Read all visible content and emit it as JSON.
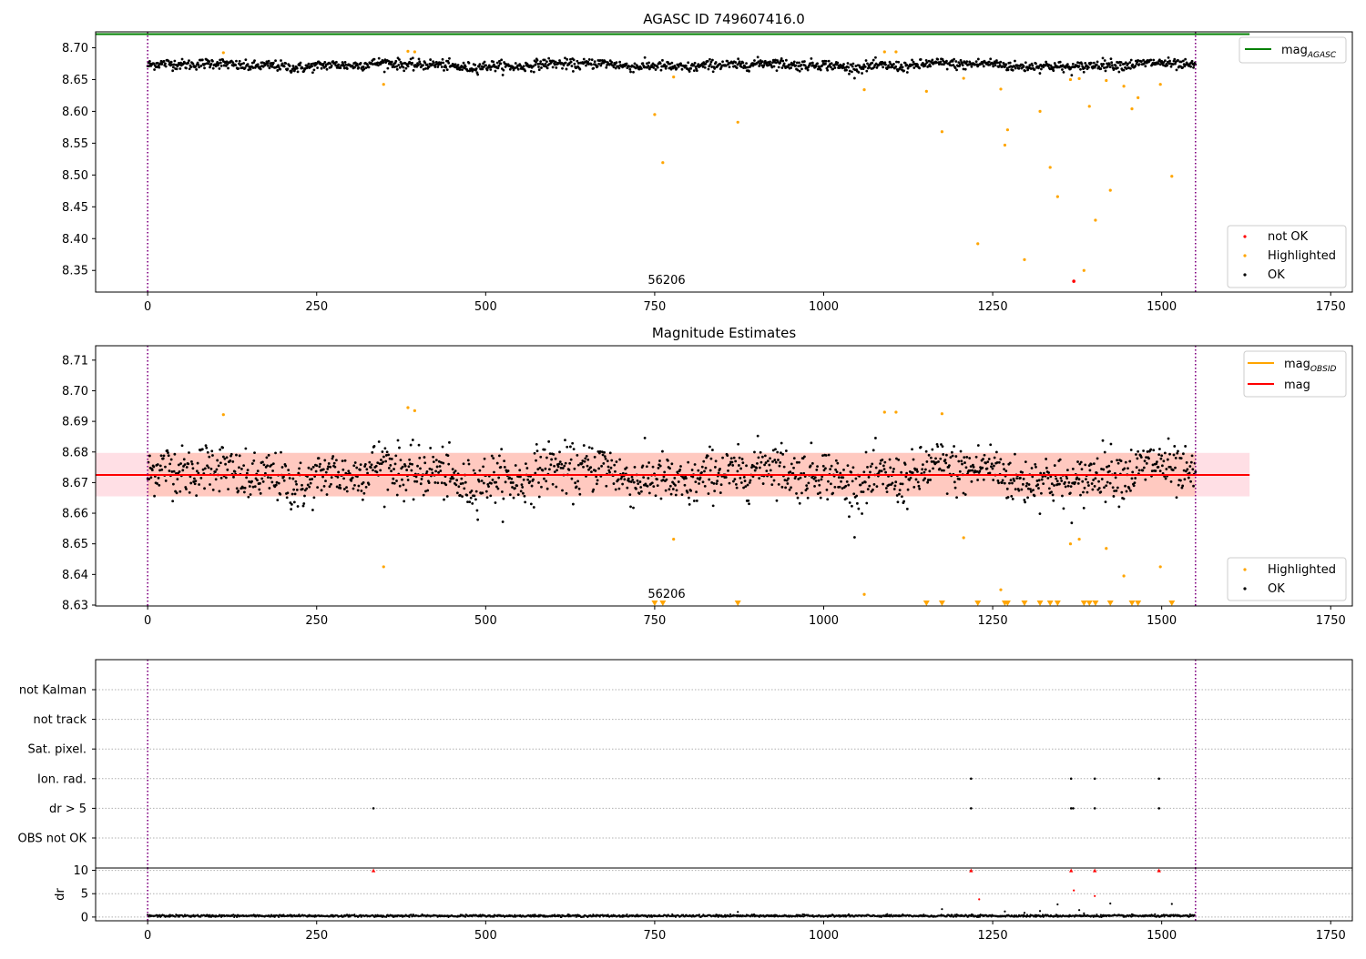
{
  "chart_data": [
    {
      "type": "scatter",
      "title": "AGASC ID 749607416.0",
      "xlim": [
        -77,
        1782
      ],
      "ylim": [
        8.316,
        8.725
      ],
      "x_ticks": [
        "0",
        "250",
        "500",
        "750",
        "1000",
        "1250",
        "1500",
        "1750"
      ],
      "y_ticks": [
        "8.70",
        "8.65",
        "8.60",
        "8.55",
        "8.50",
        "8.45",
        "8.40",
        "8.35"
      ],
      "obs_boundaries": [
        0,
        1550
      ],
      "obsid_label": "56206",
      "mag_agasc": 8.7215,
      "legend": {
        "loc": "upper right",
        "items": [
          "mag$_{AGASC}$"
        ]
      },
      "legend2": {
        "loc": "lower right",
        "items": [
          "not OK",
          "Highlighted",
          "OK"
        ]
      },
      "ok_series": {
        "name": "OK",
        "mean": 8.6725,
        "spread": 0.0055,
        "x_range": [
          0,
          1550
        ],
        "n": 1550
      },
      "highlighted": {
        "name": "Highlighted",
        "x": [
          112,
          349,
          385,
          395,
          750,
          762,
          778,
          873,
          1060,
          1090,
          1107,
          1152,
          1175,
          1207,
          1228,
          1262,
          1268,
          1272,
          1297,
          1320,
          1335,
          1346,
          1365,
          1378,
          1385,
          1393,
          1402,
          1418,
          1424,
          1444,
          1456,
          1465,
          1498,
          1515
        ],
        "y": [
          8.6922,
          8.6425,
          8.6945,
          8.6935,
          8.595,
          8.5195,
          8.654,
          8.583,
          8.634,
          8.6935,
          8.6935,
          8.6315,
          8.568,
          8.652,
          8.392,
          8.635,
          8.547,
          8.571,
          8.367,
          8.6,
          8.512,
          8.466,
          8.65,
          8.6515,
          8.35,
          8.608,
          8.429,
          8.6485,
          8.476,
          8.6395,
          8.604,
          8.6215,
          8.6425,
          8.498
        ]
      },
      "not_ok": {
        "name": "not OK",
        "x": [
          1370
        ],
        "y": [
          8.333
        ]
      }
    },
    {
      "type": "scatter",
      "title": "Magnitude Estimates",
      "xlim": [
        -77,
        1782
      ],
      "ylim": [
        8.6297,
        8.7147
      ],
      "x_ticks": [
        "0",
        "250",
        "500",
        "750",
        "1000",
        "1250",
        "1500",
        "1750"
      ],
      "y_ticks": [
        "8.71",
        "8.70",
        "8.69",
        "8.68",
        "8.67",
        "8.66",
        "8.65",
        "8.64",
        "8.63"
      ],
      "obs_boundaries": [
        0,
        1550
      ],
      "obsid_label": "56206",
      "mag": 8.6725,
      "mag_obsid": 8.6725,
      "band": [
        8.6655,
        8.6797
      ],
      "legend": {
        "loc": "upper right",
        "items": [
          "mag$_{OBSID}$",
          "mag"
        ]
      },
      "legend2": {
        "loc": "lower right",
        "items": [
          "Highlighted",
          "OK"
        ]
      },
      "highlighted": {
        "name": "Highlighted",
        "x": [
          112,
          349,
          385,
          395,
          778,
          1060,
          1090,
          1107,
          1175,
          1207,
          1262,
          1365,
          1378,
          1418,
          1444,
          1498
        ],
        "y": [
          8.6922,
          8.6425,
          8.6945,
          8.6935,
          8.6515,
          8.6335,
          8.693,
          8.693,
          8.6925,
          8.652,
          8.635,
          8.65,
          8.6515,
          8.6485,
          8.6395,
          8.6425
        ]
      },
      "below_range_markers": [
        750,
        762,
        873,
        1152,
        1175,
        1228,
        1268,
        1272,
        1297,
        1320,
        1335,
        1346,
        1385,
        1393,
        1402,
        1424,
        1456,
        1465,
        1515
      ]
    },
    {
      "type": "scatter",
      "title": "",
      "xlim": [
        -77,
        1782
      ],
      "y_categories": [
        "not Kalman",
        "not track",
        "Sat. pixel.",
        "Ion. rad.",
        "dr > 5",
        "OBS not OK"
      ],
      "obs_boundaries": [
        0,
        1550
      ],
      "flags": {
        "Ion. rad.": [
          1218,
          1366,
          1401,
          1496
        ],
        "dr > 5": [
          334,
          1218,
          1366,
          1369,
          1401,
          1496
        ]
      }
    },
    {
      "type": "scatter",
      "title": "",
      "xlim": [
        -77,
        1782
      ],
      "ylim": [
        -0.8,
        10.5
      ],
      "ylabel": "dr",
      "x_ticks": [
        "0",
        "250",
        "500",
        "750",
        "1000",
        "1250",
        "1500",
        "1750"
      ],
      "y_ticks": [
        "10",
        "5",
        "0"
      ],
      "obs_boundaries": [
        0,
        1550
      ],
      "clipped_markers_x": [
        334,
        1218,
        1366,
        1401,
        1496
      ],
      "red_points": {
        "x": [
          1230,
          1370,
          1401
        ],
        "y": [
          3.8,
          5.7,
          4.5
        ]
      },
      "outliers": {
        "x": [
          873,
          1175,
          1268,
          1297,
          1320,
          1346,
          1378,
          1385,
          1424,
          1515
        ],
        "y": [
          1.1,
          1.7,
          1.2,
          0.9,
          1.3,
          2.7,
          1.5,
          0.8,
          2.9,
          2.8
        ]
      }
    }
  ]
}
